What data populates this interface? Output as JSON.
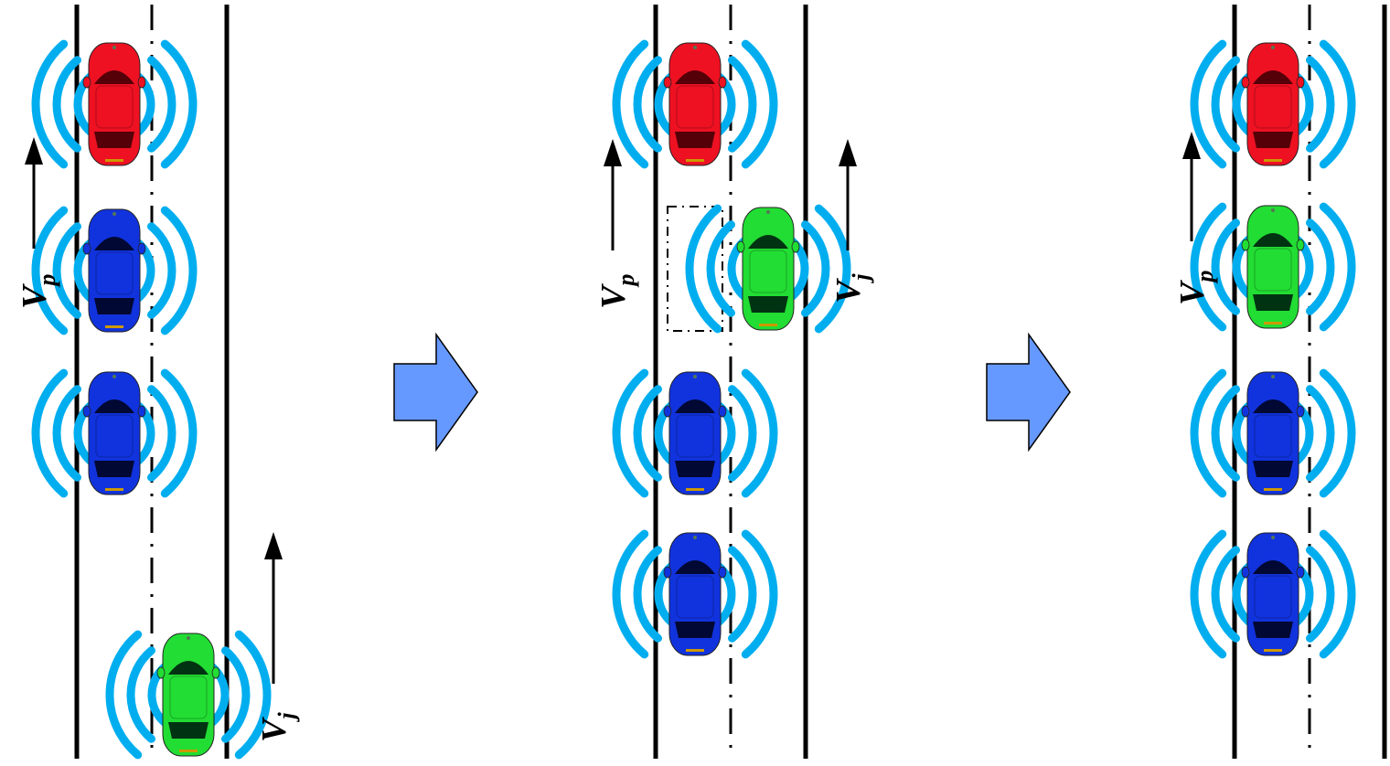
{
  "colors": {
    "wave": "#00AEEF",
    "road_line": "#000000",
    "arrow_block": "#6699FF",
    "car_red": "#EE1122",
    "car_blue": "#1133DD",
    "car_green": "#22DD33"
  },
  "panels": [
    {
      "name": "panel-1",
      "cars": [
        "red",
        "blue",
        "blue",
        "green"
      ],
      "labels": [
        {
          "main": "V",
          "sub": "p"
        },
        {
          "main": "V",
          "sub": "j"
        }
      ]
    },
    {
      "name": "panel-2",
      "cars": [
        "red",
        "green",
        "blue",
        "blue"
      ],
      "labels": [
        {
          "main": "V",
          "sub": "p"
        },
        {
          "main": "V",
          "sub": "j"
        }
      ]
    },
    {
      "name": "panel-3",
      "cars": [
        "red",
        "green",
        "blue",
        "blue"
      ],
      "labels": [
        {
          "main": "V",
          "sub": "p"
        }
      ]
    }
  ],
  "transition_arrows": [
    "block-arrow-right",
    "block-arrow-right"
  ]
}
